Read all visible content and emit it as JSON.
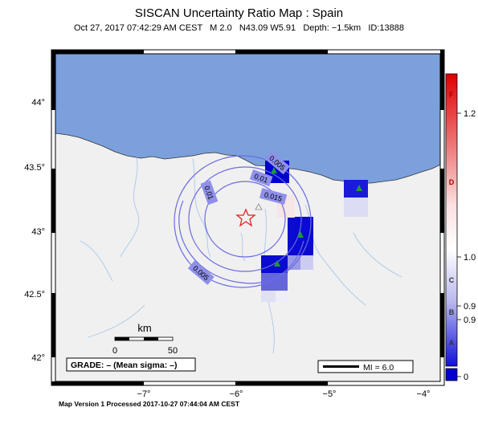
{
  "header": {
    "title": "SISCAN Uncertainty Ratio Map : Spain",
    "subtitle": "Oct 27, 2017 07:42:29 AM CEST   M 2.0   N43.09 W5.91   Depth: −1.5km   ID:13888"
  },
  "map": {
    "lat_ticks": [
      "44°",
      "43.5°",
      "43°",
      "42.5°",
      "42°"
    ],
    "lon_ticks": [
      "−7°",
      "−6°",
      "−5°",
      "−4°"
    ],
    "contour_labels": [
      "0.01",
      "0.005",
      "0.01",
      "0.015",
      "0.005"
    ],
    "scale": {
      "unit": "km",
      "start": "0",
      "end": "50"
    },
    "grade_text": "GRADE: – (Mean sigma: –)",
    "mi_text": "MI = 6.0",
    "colors": {
      "sea": "#7ba0dc",
      "land": "#f0f0f0",
      "station": "#1b9a3a",
      "epicenter": "#e82020",
      "contour": "#6b6ce0"
    }
  },
  "colorbar": {
    "letters": [
      "F",
      "D",
      "C",
      "B",
      "A"
    ],
    "values": [
      "1.2",
      "1.0",
      "0.9",
      "0.9",
      "0"
    ]
  },
  "footer": "Map Version 1 Processed 2017‐10‐27 07:44:04 AM CEST"
}
